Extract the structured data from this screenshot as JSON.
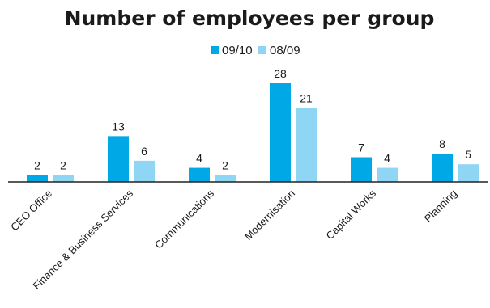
{
  "chart_data": {
    "type": "bar",
    "title": "Number of employees per group",
    "xlabel": "",
    "ylabel": "",
    "categories": [
      "CEO Office",
      "Finance & Business Services",
      "Communications",
      "Modernisation",
      "Capital Works",
      "Planning"
    ],
    "series": [
      {
        "name": "09/10",
        "values": [
          2,
          13,
          4,
          28,
          7,
          8
        ],
        "color": "#00a9e6"
      },
      {
        "name": "08/09",
        "values": [
          2,
          6,
          2,
          21,
          4,
          5
        ],
        "color": "#8fd6f5"
      }
    ],
    "ylim": [
      0,
      28
    ],
    "grid": false,
    "legend": "top-center"
  }
}
